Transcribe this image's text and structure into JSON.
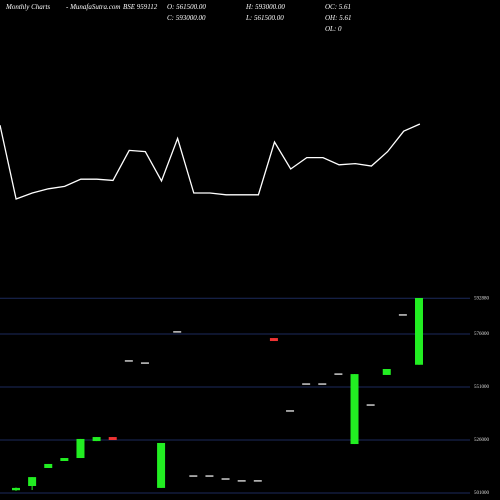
{
  "header": {
    "chart_name": "Monthly Charts",
    "site": "- MunafaSutra.com",
    "symbol": "BSE 959112",
    "open": "O: 561500.00",
    "high": "H: 593000.00",
    "oc": "OC: 5.61",
    "close": "C: 593000.00",
    "low": "L: 561500.00",
    "oh": "OH: 5.61",
    "ol": "OL: 0"
  },
  "chart_data": [
    {
      "type": "line",
      "color": "#ffffff",
      "ylim": [
        0,
        100
      ],
      "values": [
        79,
        17.5,
        22.5,
        26,
        28,
        34,
        34,
        33,
        58,
        57,
        32.5,
        68,
        22.5,
        22.5,
        21,
        21,
        21,
        65,
        42.5,
        52,
        52,
        46,
        47,
        45,
        57,
        74,
        80
      ]
    },
    {
      "type": "candlestick",
      "up_color": "#22ee22",
      "down_color": "#ee3333",
      "flat_color": "#ffffff",
      "ylim": [
        501000,
        593000
      ],
      "yticks": [
        592880,
        576000,
        551000,
        526000,
        501000
      ],
      "open": [
        502300,
        504300,
        512800,
        516100,
        517500,
        525500,
        527400,
        563300,
        562300,
        503400,
        577000,
        509000,
        509000,
        507600,
        506700,
        506700,
        574100,
        539700,
        552400,
        552400,
        557100,
        524100,
        542500,
        556700,
        585000,
        561500
      ],
      "high": [
        503600,
        508500,
        514700,
        517500,
        526500,
        527400,
        527400,
        563300,
        562300,
        524600,
        577000,
        509000,
        509000,
        507600,
        506700,
        506700,
        574100,
        539700,
        552400,
        552400,
        557100,
        557100,
        542500,
        559500,
        585000,
        593000
      ],
      "low": [
        502000,
        502400,
        512800,
        516100,
        517500,
        525500,
        526000,
        563300,
        562300,
        503400,
        577000,
        509000,
        509000,
        507600,
        506700,
        506700,
        572700,
        539700,
        552400,
        552400,
        557100,
        524100,
        542500,
        556700,
        585000,
        561500
      ],
      "close": [
        503400,
        508500,
        514700,
        517500,
        526500,
        527400,
        526000,
        563300,
        562300,
        524600,
        577000,
        509000,
        509000,
        507600,
        506700,
        506700,
        572700,
        539700,
        552400,
        552400,
        557100,
        557100,
        542500,
        559500,
        585000,
        593000
      ]
    }
  ]
}
